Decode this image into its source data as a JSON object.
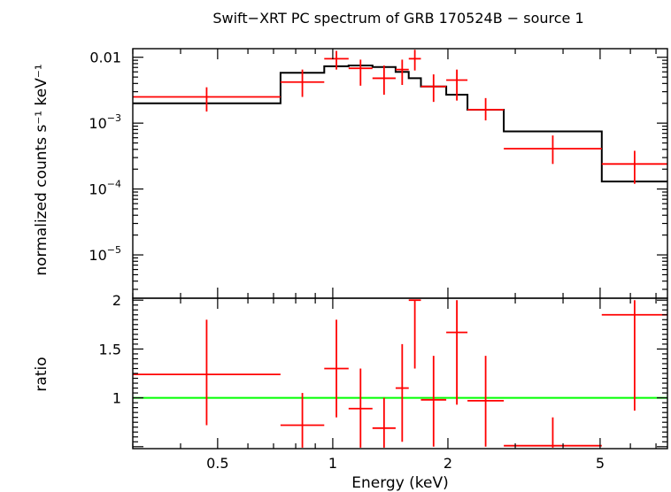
{
  "chart_data": [
    {
      "type": "scatter",
      "title": "Swift−XRT PC spectrum of GRB 170524B − source 1",
      "xlabel": "Energy (keV)",
      "ylabel": "normalized counts s⁻¹ keV⁻¹",
      "xscale": "log",
      "yscale": "log",
      "xlim": [
        0.3,
        7.5
      ],
      "ylim": [
        2.2e-06,
        0.0135
      ],
      "x_tick_labels": [
        "0.5",
        "1",
        "2",
        "5"
      ],
      "y_tick_labels": [
        {
          "value": 0.01,
          "label": "0.01"
        },
        {
          "value": 0.001,
          "mantissa": "10",
          "exp": "−3"
        },
        {
          "value": 0.0001,
          "mantissa": "10",
          "exp": "−4"
        },
        {
          "value": 1e-05,
          "mantissa": "10",
          "exp": "−5"
        }
      ],
      "series": [
        {
          "kind": "data",
          "color": "#ff0000",
          "points": [
            {
              "xlo": 0.3,
              "xhi": 0.73,
              "y": 0.0025,
              "ylo": 0.0015,
              "yhi": 0.0035
            },
            {
              "xlo": 0.73,
              "xhi": 0.95,
              "y": 0.0042,
              "ylo": 0.0025,
              "yhi": 0.0065
            },
            {
              "xlo": 0.95,
              "xhi": 1.1,
              "y": 0.0095,
              "ylo": 0.0065,
              "yhi": 0.0125
            },
            {
              "xlo": 1.1,
              "xhi": 1.27,
              "y": 0.0068,
              "ylo": 0.0037,
              "yhi": 0.0092
            },
            {
              "xlo": 1.27,
              "xhi": 1.46,
              "y": 0.0048,
              "ylo": 0.0027,
              "yhi": 0.0075
            },
            {
              "xlo": 1.46,
              "xhi": 1.58,
              "y": 0.0065,
              "ylo": 0.0038,
              "yhi": 0.0092
            },
            {
              "xlo": 1.58,
              "xhi": 1.7,
              "y": 0.0095,
              "ylo": 0.0063,
              "yhi": 0.013
            },
            {
              "xlo": 1.7,
              "xhi": 1.98,
              "y": 0.0036,
              "ylo": 0.0021,
              "yhi": 0.0055
            },
            {
              "xlo": 1.98,
              "xhi": 2.25,
              "y": 0.0045,
              "ylo": 0.0022,
              "yhi": 0.0065
            },
            {
              "xlo": 2.25,
              "xhi": 2.8,
              "y": 0.0016,
              "ylo": 0.0011,
              "yhi": 0.0024
            },
            {
              "xlo": 2.8,
              "xhi": 5.05,
              "y": 0.00041,
              "ylo": 0.00024,
              "yhi": 0.00065
            },
            {
              "xlo": 5.05,
              "xhi": 7.5,
              "y": 0.00024,
              "ylo": 0.00012,
              "yhi": 0.00038
            }
          ]
        },
        {
          "kind": "model",
          "color": "#000000",
          "steps": [
            {
              "xlo": 0.3,
              "xhi": 0.73,
              "y": 0.002
            },
            {
              "xlo": 0.73,
              "xhi": 0.95,
              "y": 0.0058
            },
            {
              "xlo": 0.95,
              "xhi": 1.1,
              "y": 0.0073
            },
            {
              "xlo": 1.1,
              "xhi": 1.27,
              "y": 0.0075
            },
            {
              "xlo": 1.27,
              "xhi": 1.46,
              "y": 0.0071
            },
            {
              "xlo": 1.46,
              "xhi": 1.58,
              "y": 0.006
            },
            {
              "xlo": 1.58,
              "xhi": 1.7,
              "y": 0.0048
            },
            {
              "xlo": 1.7,
              "xhi": 1.98,
              "y": 0.0036
            },
            {
              "xlo": 1.98,
              "xhi": 2.25,
              "y": 0.0027
            },
            {
              "xlo": 2.25,
              "xhi": 2.8,
              "y": 0.0016
            },
            {
              "xlo": 2.8,
              "xhi": 5.05,
              "y": 0.00075
            },
            {
              "xlo": 5.05,
              "xhi": 7.5,
              "y": 0.00013
            }
          ]
        }
      ]
    },
    {
      "type": "scatter",
      "xlabel": "Energy (keV)",
      "ylabel": "ratio",
      "xscale": "log",
      "yscale": "linear",
      "xlim": [
        0.3,
        7.5
      ],
      "ylim": [
        0.48,
        2.02
      ],
      "x_tick_labels": [
        "0.5",
        "1",
        "2",
        "5"
      ],
      "y_tick_labels": [
        "1",
        "1.5",
        "2"
      ],
      "reference_line": {
        "y": 1,
        "color": "#00ff00"
      },
      "series": [
        {
          "kind": "data",
          "color": "#ff0000",
          "points": [
            {
              "xlo": 0.3,
              "xhi": 0.73,
              "y": 1.24,
              "ylo": 0.72,
              "yhi": 1.8
            },
            {
              "xlo": 0.73,
              "xhi": 0.95,
              "y": 0.72,
              "ylo": 0.49,
              "yhi": 1.05
            },
            {
              "xlo": 0.95,
              "xhi": 1.1,
              "y": 1.3,
              "ylo": 0.8,
              "yhi": 1.8
            },
            {
              "xlo": 1.1,
              "xhi": 1.27,
              "y": 0.89,
              "ylo": 0.49,
              "yhi": 1.3
            },
            {
              "xlo": 1.27,
              "xhi": 1.46,
              "y": 0.69,
              "ylo": 0.49,
              "yhi": 1.0
            },
            {
              "xlo": 1.46,
              "xhi": 1.58,
              "y": 1.1,
              "ylo": 0.55,
              "yhi": 1.55
            },
            {
              "xlo": 1.58,
              "xhi": 1.7,
              "y": 2.0,
              "ylo": 1.3,
              "yhi": 2.0
            },
            {
              "xlo": 1.7,
              "xhi": 1.98,
              "y": 0.98,
              "ylo": 0.5,
              "yhi": 1.43
            },
            {
              "xlo": 1.98,
              "xhi": 2.25,
              "y": 1.67,
              "ylo": 0.93,
              "yhi": 2.0
            },
            {
              "xlo": 2.25,
              "xhi": 2.8,
              "y": 0.97,
              "ylo": 0.5,
              "yhi": 1.43
            },
            {
              "xlo": 2.8,
              "xhi": 5.05,
              "y": 0.51,
              "ylo": 0.49,
              "yhi": 0.8
            },
            {
              "xlo": 5.05,
              "xhi": 7.5,
              "y": 1.85,
              "ylo": 0.87,
              "yhi": 2.0
            }
          ]
        }
      ]
    }
  ]
}
